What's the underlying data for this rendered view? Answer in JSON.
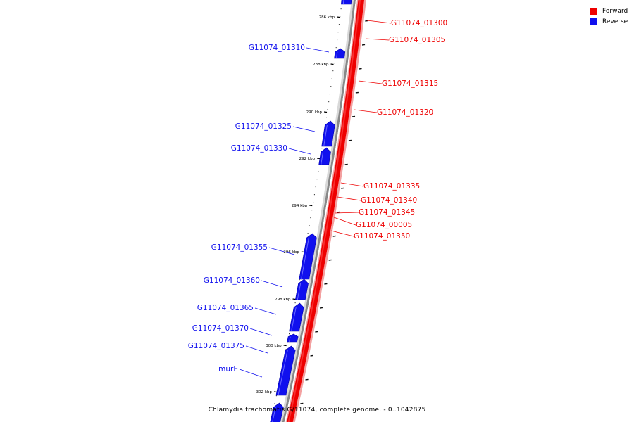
{
  "title": "Chlamydia trachomatis G/11074, complete genome. - 0..1042875",
  "colors": {
    "forward": "#ee0000",
    "reverse": "#1010ee",
    "backbone": "#888888"
  },
  "legend": {
    "forward": "Forward",
    "reverse": "Reverse"
  },
  "ticks": [
    {
      "label": "286 kbp",
      "kbp": 286
    },
    {
      "label": "288 kbp",
      "kbp": 288
    },
    {
      "label": "290 kbp",
      "kbp": 290
    },
    {
      "label": "292 kbp",
      "kbp": 292
    },
    {
      "label": "294 kbp",
      "kbp": 294
    },
    {
      "label": "296 kbp",
      "kbp": 296
    },
    {
      "label": "298 kbp",
      "kbp": 298
    },
    {
      "label": "300 kbp",
      "kbp": 300
    },
    {
      "label": "302 kbp",
      "kbp": 302
    }
  ],
  "forward_genes": [
    "G11074_01300",
    "G11074_01305",
    "G11074_01315",
    "G11074_01320",
    "G11074_01335",
    "G11074_01340",
    "G11074_01345",
    "G11074_00005",
    "G11074_01350"
  ],
  "reverse_genes": [
    "G11074_01310",
    "G11074_01325",
    "G11074_01330",
    "G11074_01355",
    "G11074_01360",
    "G11074_01365",
    "G11074_01370",
    "G11074_01375",
    "murE"
  ]
}
